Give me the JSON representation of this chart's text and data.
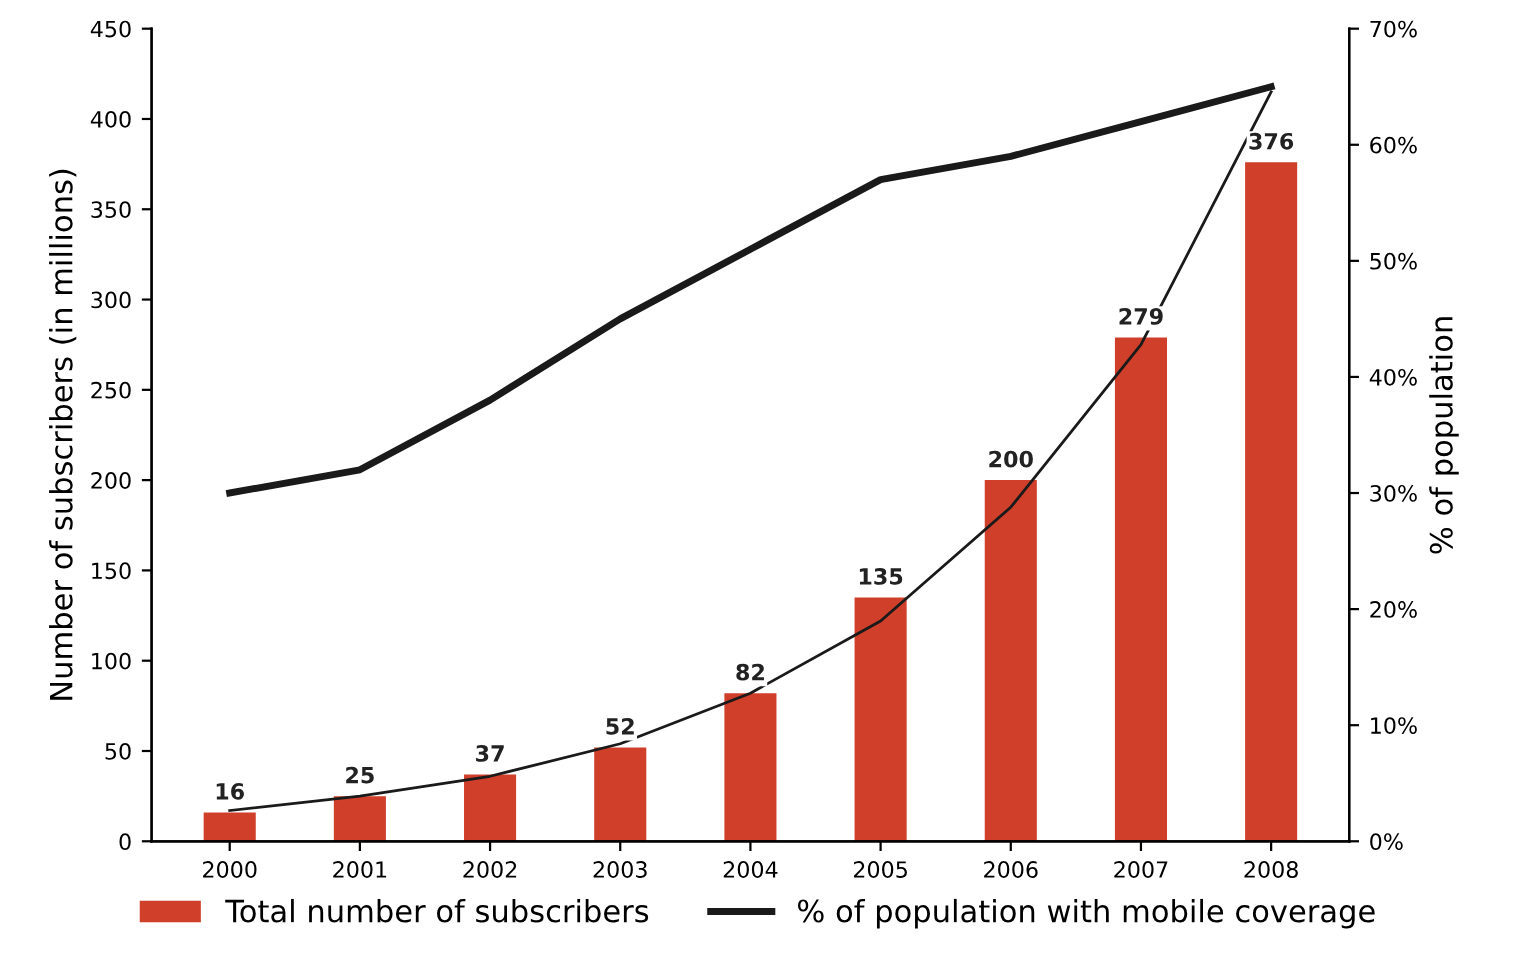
{
  "chart_data": {
    "type": "bar",
    "ylabel": "Number of subscribers (in millions)",
    "y2label": "% of population",
    "categories": [
      "2000",
      "2001",
      "2002",
      "2003",
      "2004",
      "2005",
      "2006",
      "2007",
      "2008"
    ],
    "series": [
      {
        "name": "Total number of subscribers",
        "color": "#cf3f2a",
        "values": [
          16,
          25,
          37,
          52,
          82,
          135,
          200,
          279,
          376
        ],
        "value_labels": [
          "16",
          "25",
          "37",
          "52",
          "82",
          "135",
          "200",
          "279",
          "376"
        ]
      },
      {
        "name": "% of population with mobile coverage",
        "type": "line",
        "axis": "y2",
        "color": "#1a1a1a",
        "values": [
          30,
          32,
          38,
          45,
          51,
          57,
          59,
          62,
          65
        ]
      },
      {
        "type": "line",
        "color": "#1a1a1a",
        "values": [
          17,
          25,
          36,
          54,
          82,
          122,
          185,
          275,
          415
        ]
      }
    ],
    "ylim": [
      0,
      450
    ],
    "yticks": [
      0,
      50,
      100,
      150,
      200,
      250,
      300,
      350,
      400,
      450
    ],
    "y2lim": [
      0,
      70
    ],
    "y2ticks": [
      {
        "value": 0,
        "label": "0%"
      },
      {
        "value": 10,
        "label": "10%"
      },
      {
        "value": 20,
        "label": "20%"
      },
      {
        "value": 30,
        "label": "30%"
      },
      {
        "value": 40,
        "label": "40%"
      },
      {
        "value": 50,
        "label": "50%"
      },
      {
        "value": 60,
        "label": "60%"
      },
      {
        "value": 70,
        "label": "70%"
      }
    ],
    "legend": "bottom",
    "grid": false
  }
}
